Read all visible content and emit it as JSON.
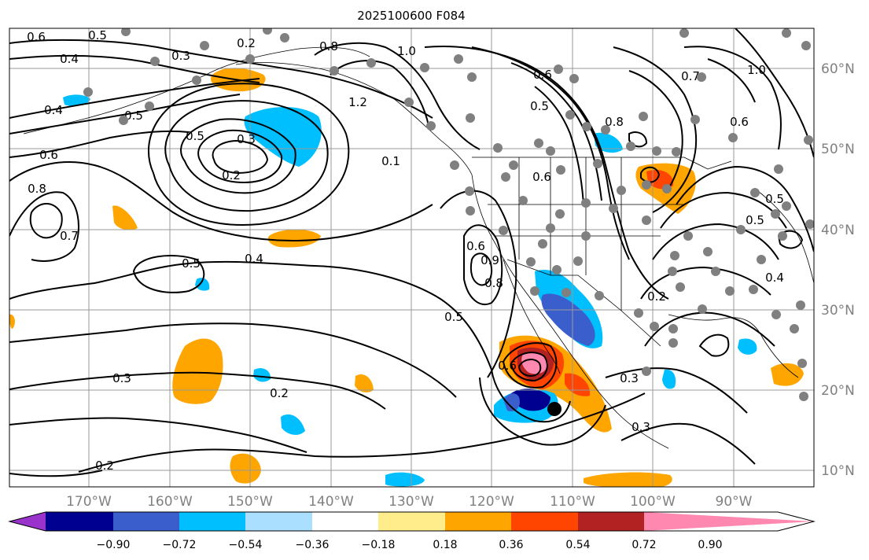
{
  "chart_data": {
    "type": "map",
    "title": "2025100600 F084",
    "projection": "lat-lon",
    "lon_range": [
      -180,
      -80
    ],
    "lat_range": [
      8,
      65
    ],
    "lon_ticks": [
      {
        "value": -170,
        "label": "170°W"
      },
      {
        "value": -160,
        "label": "160°W"
      },
      {
        "value": -150,
        "label": "150°W"
      },
      {
        "value": -140,
        "label": "140°W"
      },
      {
        "value": -130,
        "label": "130°W"
      },
      {
        "value": -120,
        "label": "120°W"
      },
      {
        "value": -110,
        "label": "110°W"
      },
      {
        "value": -100,
        "label": "100°W"
      },
      {
        "value": -90,
        "label": "90°W"
      }
    ],
    "lat_ticks": [
      {
        "value": 10,
        "label": "10°N"
      },
      {
        "value": 20,
        "label": "20°N"
      },
      {
        "value": 30,
        "label": "30°N"
      },
      {
        "value": 40,
        "label": "40°N"
      },
      {
        "value": 50,
        "label": "50°N"
      },
      {
        "value": 60,
        "label": "60°N"
      }
    ],
    "colorbar": {
      "orientation": "horizontal",
      "extend": "both",
      "bounds": [
        -0.9,
        -0.72,
        -0.54,
        -0.36,
        -0.18,
        0.18,
        0.36,
        0.54,
        0.72,
        0.9
      ],
      "tick_labels": [
        "−0.90",
        "−0.72",
        "−0.54",
        "−0.36",
        "−0.18",
        "0.18",
        "0.36",
        "0.54",
        "0.72",
        "0.90"
      ],
      "colors": [
        "#9933cc",
        "#000090",
        "#3a5fcd",
        "#00bfff",
        "#aadfff",
        "#ffffff",
        "#ffec8b",
        "#ffa500",
        "#ff4500",
        "#b22222",
        "#ff88b0"
      ]
    },
    "contour_labels": [
      "0.6",
      "0.5",
      "0.2",
      "0.4",
      "0.3",
      "0.8",
      "0.5",
      "0.6",
      "1.0",
      "0.4",
      "0.5",
      "0.3",
      "0.2",
      "0.6",
      "0.8",
      "0.7",
      "0.5",
      "0.4",
      "0.5",
      "0.3",
      "0.2",
      "0.2",
      "0.6",
      "0.5",
      "0.6",
      "0.9",
      "0.7",
      "1.0",
      "0.8",
      "0.6",
      "0.5",
      "0.5",
      "0.4",
      "0.3",
      "0.2",
      "0.3",
      "0.8",
      "0.6",
      "1.2",
      "0.1"
    ],
    "contour_style": {
      "color": "#000000"
    },
    "stations_color": "#808080",
    "marker": {
      "lon": -112,
      "lat": 17.5,
      "color": "#000000"
    }
  }
}
